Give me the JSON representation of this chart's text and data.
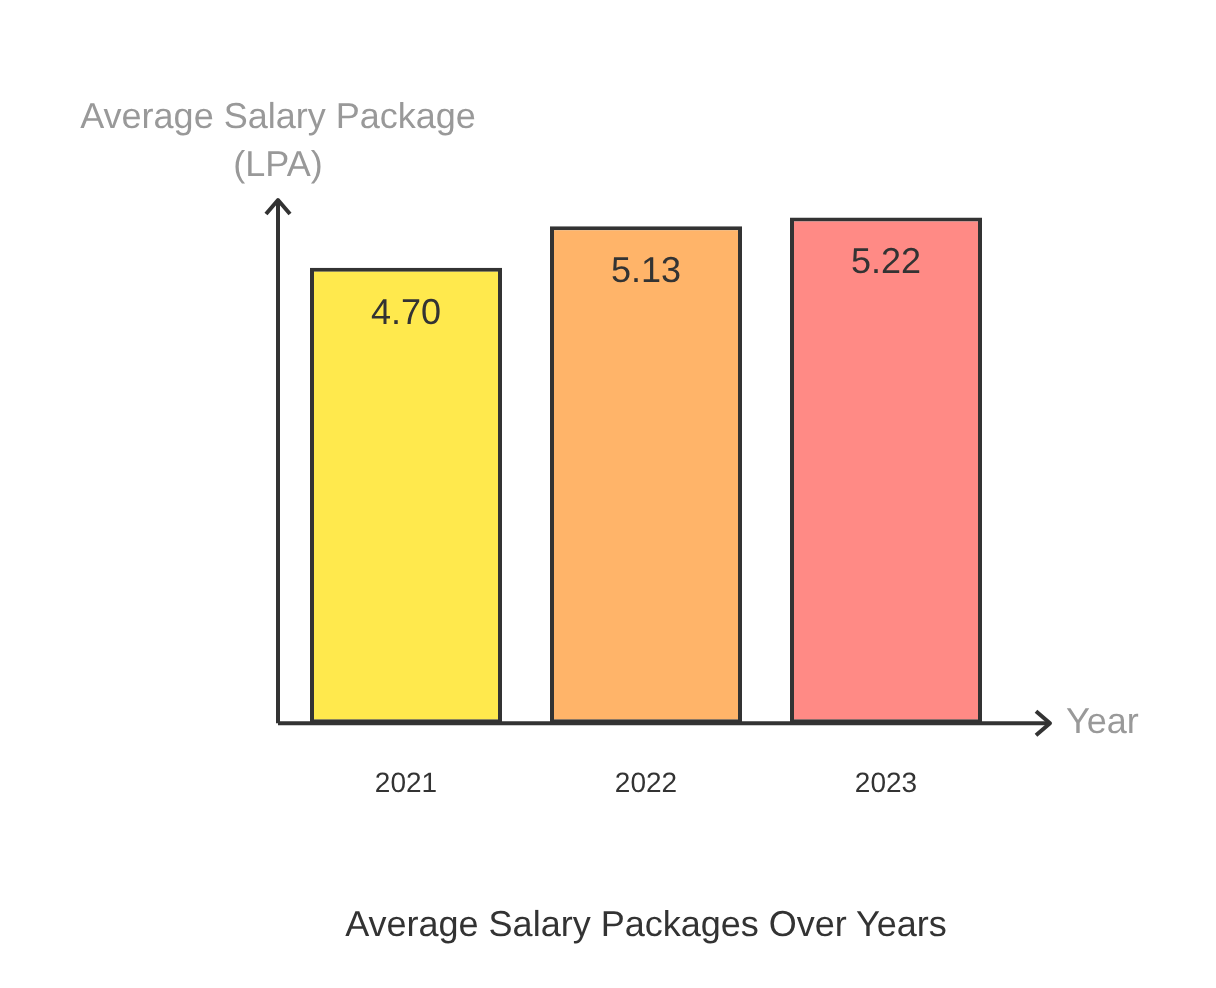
{
  "chart_data": {
    "type": "bar",
    "title": "Average Salary Packages Over Years",
    "xlabel": "Year",
    "ylabel": "Average Salary Package (LPA)",
    "categories": [
      "2021",
      "2022",
      "2023"
    ],
    "values": [
      4.7,
      5.13,
      5.22
    ],
    "value_labels": [
      "4.70",
      "5.13",
      "5.22"
    ],
    "colors": [
      "#ffe94d",
      "#ffb469",
      "#ff8a85"
    ],
    "ylim": [
      0,
      5.4
    ],
    "grid": false,
    "legend": false
  }
}
